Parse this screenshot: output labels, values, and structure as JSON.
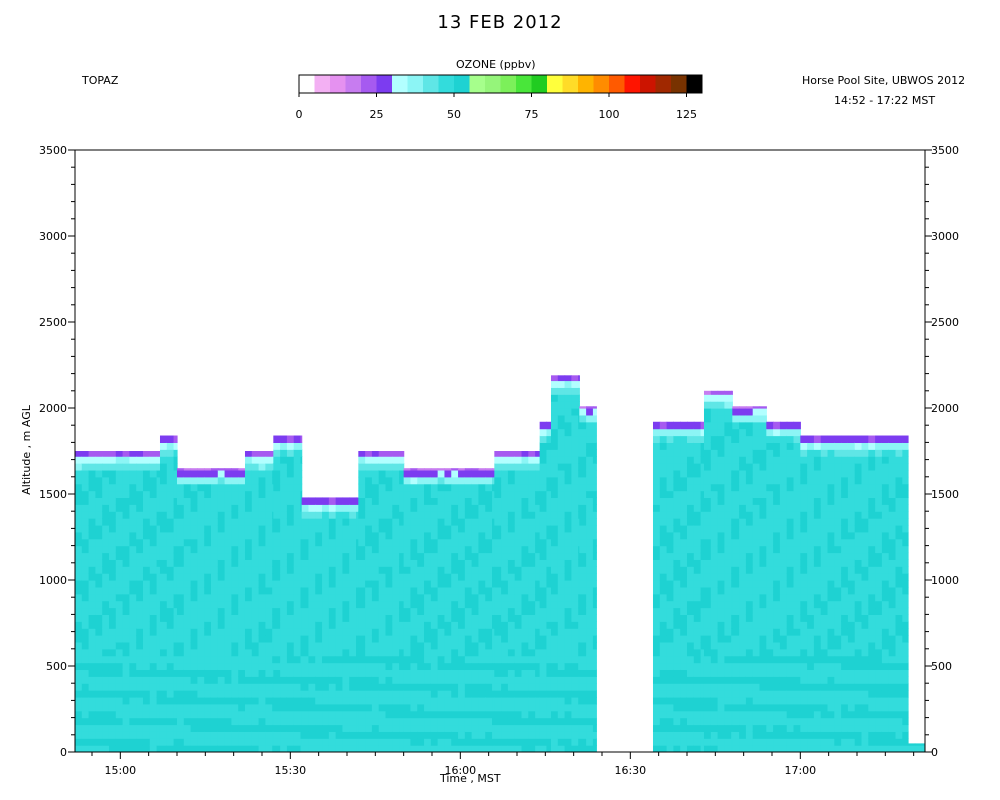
{
  "header": {
    "title": "13 FEB 2012",
    "instrument": "TOPAZ",
    "site": "Horse Pool Site, UBWOS 2012",
    "time_range": "14:52 - 17:22 MST"
  },
  "colorbar": {
    "title": "OZONE (ppbv)",
    "min": 0,
    "max": 130,
    "step": 5,
    "ticks": [
      "0",
      "25",
      "50",
      "75",
      "100",
      "125"
    ],
    "tick_values": [
      0,
      25,
      50,
      75,
      100,
      125
    ],
    "colors": [
      "#ffffff",
      "#f3b0f3",
      "#e591f0",
      "#c77cf0",
      "#a65af0",
      "#7c3cf0",
      "#b2ffff",
      "#8cf5f5",
      "#5fe6e6",
      "#33dcdc",
      "#1ed2d2",
      "#a6ff8c",
      "#95f57a",
      "#7cf05a",
      "#49e63a",
      "#21cc21",
      "#ffff3c",
      "#ffdc28",
      "#ffb400",
      "#ff8c00",
      "#ff5a00",
      "#ff1400",
      "#cc1400",
      "#a02800",
      "#783200",
      "#000000"
    ]
  },
  "chart_data": {
    "type": "heatmap",
    "title": "13 FEB 2012",
    "xlabel": "Time , MST",
    "ylabel": "Altitude , m AGL",
    "x_ticks": [
      "15:00",
      "15:30",
      "16:00",
      "16:30",
      "17:00"
    ],
    "x_tick_values_hours": [
      15.0,
      15.5,
      16.0,
      16.5,
      17.0
    ],
    "xlim_hours": [
      14.8667,
      17.3667
    ],
    "y_ticks": [
      "0",
      "500",
      "1000",
      "1500",
      "2000",
      "2500",
      "3000",
      "3500"
    ],
    "y_tick_values": [
      0,
      500,
      1000,
      1500,
      2000,
      2500,
      3000,
      3500
    ],
    "ylim": [
      0,
      3500
    ],
    "data_gap_hours": [
      16.4,
      16.5667
    ],
    "profiles": [
      {
        "start": "14:52",
        "end": "15:07",
        "top_m": 1750
      },
      {
        "start": "15:07",
        "end": "15:10",
        "top_m": 1840
      },
      {
        "start": "15:10",
        "end": "15:22",
        "top_m": 1650
      },
      {
        "start": "15:22",
        "end": "15:27",
        "top_m": 1750
      },
      {
        "start": "15:27",
        "end": "15:32",
        "top_m": 1840
      },
      {
        "start": "15:32",
        "end": "15:42",
        "top_m": 1480
      },
      {
        "start": "15:42",
        "end": "15:50",
        "top_m": 1750
      },
      {
        "start": "15:50",
        "end": "16:06",
        "top_m": 1650
      },
      {
        "start": "16:06",
        "end": "16:14",
        "top_m": 1750
      },
      {
        "start": "16:14",
        "end": "16:16",
        "top_m": 1920
      },
      {
        "start": "16:16",
        "end": "16:21",
        "top_m": 2190
      },
      {
        "start": "16:21",
        "end": "16:24",
        "top_m": 2010
      },
      {
        "start": "16:34",
        "end": "16:43",
        "top_m": 1920
      },
      {
        "start": "16:43",
        "end": "16:48",
        "top_m": 2100
      },
      {
        "start": "16:48",
        "end": "16:54",
        "top_m": 2010
      },
      {
        "start": "16:54",
        "end": "17:00",
        "top_m": 1920
      },
      {
        "start": "17:00",
        "end": "17:19",
        "top_m": 1840
      },
      {
        "start": "17:19",
        "end": "17:22",
        "top_m": 50
      }
    ],
    "dominant_values_ppbv": {
      "boundary_layer": 47,
      "aloft": 52,
      "upper_edges": 25
    }
  }
}
